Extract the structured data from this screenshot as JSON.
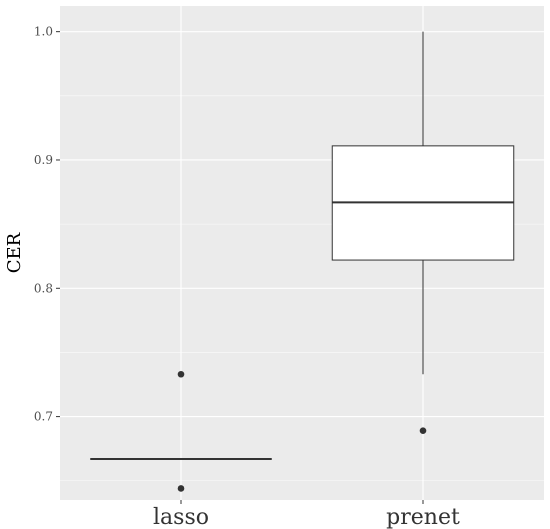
{
  "chart_data": {
    "type": "boxplot",
    "ylabel": "CER",
    "xlabel": "",
    "ylim": [
      0.635,
      1.02
    ],
    "yticks": [
      0.7,
      0.8,
      0.9,
      1.0
    ],
    "ytick_labels": [
      "0.7",
      "0.8",
      "0.9",
      "1.0"
    ],
    "grid": true,
    "categories": [
      "lasso",
      "prenet"
    ],
    "boxes": [
      {
        "category": "lasso",
        "whisker_low": 0.667,
        "q1": 0.667,
        "median": 0.667,
        "q3": 0.667,
        "whisker_high": 0.667,
        "outliers": [
          0.733,
          0.644
        ]
      },
      {
        "category": "prenet",
        "whisker_low": 0.733,
        "q1": 0.822,
        "median": 0.867,
        "q3": 0.911,
        "whisker_high": 1.0,
        "outliers": [
          0.689
        ]
      }
    ],
    "colors": {
      "panel": "#ebebeb",
      "grid_major": "#ffffff",
      "box_fill": "#ffffff",
      "box_line": "#333333",
      "outlier": "#333333"
    }
  }
}
